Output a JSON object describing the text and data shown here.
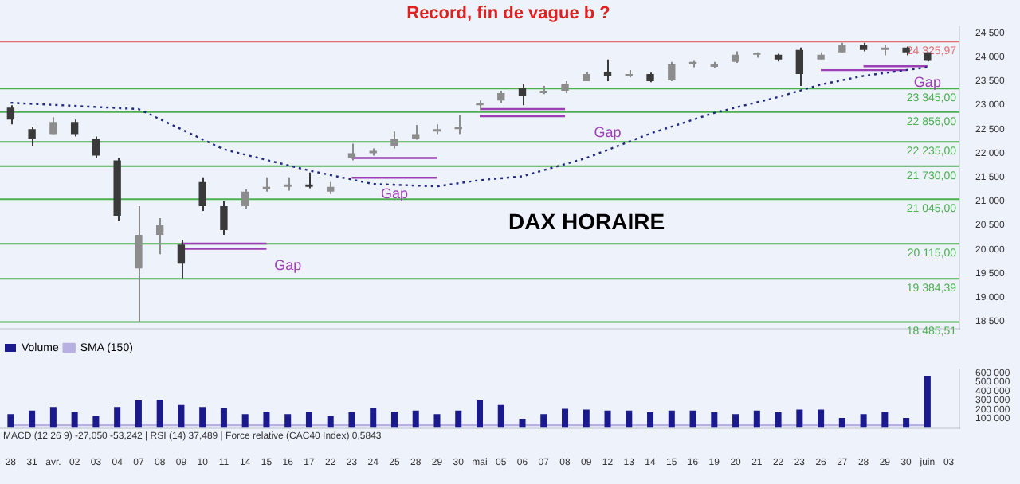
{
  "chart_data": [
    {
      "type": "candlestick",
      "title": "Record, fin de vague b ?",
      "colors": [
        "#3a3a3a",
        "#3a3a3a",
        "#8c8c8c",
        "#3a3a3a",
        "#3a3a3a",
        "#3a3a3a",
        "#8c8c8c",
        "#8c8c8c",
        "#3a3a3a",
        "#3a3a3a",
        "#3a3a3a",
        "#8c8c8c",
        "#8c8c8c",
        "#8c8c8c",
        "#3a3a3a",
        "#8c8c8c",
        "#8c8c8c",
        "#8c8c8c",
        "#8c8c8c",
        "#8c8c8c",
        "#8c8c8c",
        "#8c8c8c",
        "#8c8c8c",
        "#8c8c8c",
        "#3a3a3a",
        "#8c8c8c",
        "#8c8c8c",
        "#8c8c8c",
        "#3a3a3a",
        "#8c8c8c",
        "#3a3a3a",
        "#8c8c8c",
        "#8c8c8c",
        "#8c8c8c",
        "#8c8c8c",
        "#8c8c8c",
        "#3a3a3a",
        "#3a3a3a",
        "#8c8c8c",
        "#8c8c8c",
        "#3a3a3a",
        "#8c8c8c",
        "#3a3a3a",
        "#3a3a3a",
        null
      ],
      "tick_labels": "y",
      "marker": "none",
      "categories": [
        "28",
        "31",
        "avr.",
        "02",
        "03",
        "04",
        "07",
        "08",
        "09",
        "10",
        "11",
        "14",
        "15",
        "16",
        "17",
        "22",
        "23",
        "24",
        "25",
        "28",
        "29",
        "30",
        "mai",
        "05",
        "06",
        "07",
        "08",
        "09",
        "12",
        "13",
        "14",
        "15",
        "16",
        "19",
        "20",
        "21",
        "22",
        "23",
        "26",
        "27",
        "28",
        "29",
        "30",
        "juin",
        "03"
      ],
      "ohlc": [
        [
          22950,
          23000,
          22600,
          22700
        ],
        [
          22500,
          22550,
          22150,
          22300
        ],
        [
          22400,
          22750,
          22400,
          22650
        ],
        [
          22650,
          22700,
          22350,
          22400
        ],
        [
          22300,
          22350,
          21900,
          21950
        ],
        [
          21850,
          21900,
          20600,
          20700
        ],
        [
          19600,
          20900,
          18490,
          20300
        ],
        [
          20300,
          20650,
          19900,
          20500
        ],
        [
          20100,
          20200,
          19400,
          19700
        ],
        [
          21400,
          21500,
          20800,
          20900
        ],
        [
          20900,
          21000,
          20300,
          20400
        ],
        [
          20900,
          21250,
          20850,
          21200
        ],
        [
          21250,
          21500,
          21200,
          21300
        ],
        [
          21300,
          21500,
          21220,
          21350
        ],
        [
          21350,
          21600,
          21270,
          21300
        ],
        [
          21200,
          21400,
          21150,
          21300
        ],
        [
          21900,
          22200,
          21850,
          22000
        ],
        [
          22000,
          22100,
          21950,
          22050
        ],
        [
          22150,
          22450,
          22100,
          22300
        ],
        [
          22300,
          22590,
          22280,
          22400
        ],
        [
          22450,
          22600,
          22400,
          22500
        ],
        [
          22500,
          22800,
          22400,
          22550
        ],
        [
          23000,
          23100,
          22900,
          23050
        ],
        [
          23100,
          23300,
          23050,
          23250
        ],
        [
          23350,
          23450,
          23000,
          23200
        ],
        [
          23250,
          23400,
          23230,
          23300
        ],
        [
          23300,
          23500,
          23250,
          23450
        ],
        [
          23500,
          23700,
          23500,
          23650
        ],
        [
          23700,
          23950,
          23500,
          23600
        ],
        [
          23600,
          23730,
          23580,
          23650
        ],
        [
          23650,
          23680,
          23480,
          23500
        ],
        [
          23520,
          23900,
          23500,
          23850
        ],
        [
          23850,
          23940,
          23790,
          23900
        ],
        [
          23800,
          23900,
          23780,
          23850
        ],
        [
          23900,
          24120,
          23880,
          24050
        ],
        [
          24050,
          24100,
          23990,
          24080
        ],
        [
          24050,
          24070,
          23910,
          23950
        ],
        [
          24150,
          24200,
          23400,
          23650
        ],
        [
          23950,
          24100,
          23950,
          24050
        ],
        [
          24100,
          24300,
          24100,
          24250
        ],
        [
          24250,
          24300,
          24120,
          24150
        ],
        [
          24150,
          24250,
          24040,
          24200
        ],
        [
          24200,
          24220,
          24040,
          24100
        ],
        [
          24100,
          24100,
          23910,
          23940
        ],
        null
      ],
      "series": [
        {
          "type": "line",
          "color": "#1f2a80",
          "line_style": "dotted",
          "values": [
            23050,
            null,
            null,
            null,
            null,
            null,
            22920,
            null,
            null,
            null,
            22080,
            null,
            null,
            null,
            21640,
            null,
            null,
            21360,
            null,
            null,
            21310,
            null,
            21440,
            null,
            21520,
            null,
            null,
            21900,
            null,
            null,
            22410,
            null,
            null,
            22840,
            null,
            null,
            23170,
            null,
            23430,
            null,
            23610,
            null,
            null,
            23790,
            null
          ]
        },
        {
          "type": "line",
          "color": "#9b3fb5",
          "values": [
            null,
            null,
            null,
            null,
            null,
            null,
            null,
            null,
            20120,
            20120,
            20120,
            20120,
            20120,
            null,
            null,
            null,
            null,
            null,
            null,
            null,
            null,
            null,
            null,
            null,
            null,
            null,
            null,
            null,
            null,
            null,
            null,
            null,
            null,
            null,
            null,
            null,
            null,
            null,
            null,
            null,
            null,
            null,
            null,
            null,
            null
          ]
        },
        {
          "type": "line",
          "color": "#9b3fb5",
          "values": [
            null,
            null,
            null,
            null,
            null,
            null,
            null,
            null,
            20010,
            20010,
            20010,
            20010,
            20010,
            null,
            null,
            null,
            null,
            null,
            null,
            null,
            null,
            null,
            null,
            null,
            null,
            null,
            null,
            null,
            null,
            null,
            null,
            null,
            null,
            null,
            null,
            null,
            null,
            null,
            null,
            null,
            null,
            null,
            null,
            null,
            null
          ]
        },
        {
          "type": "line",
          "color": "#9b3fb5",
          "values": [
            null,
            null,
            null,
            null,
            null,
            null,
            null,
            null,
            null,
            null,
            null,
            null,
            null,
            null,
            null,
            null,
            21900,
            21900,
            21900,
            21900,
            21900,
            null,
            null,
            null,
            null,
            null,
            null,
            null,
            null,
            null,
            null,
            null,
            null,
            null,
            null,
            null,
            null,
            null,
            null,
            null,
            null,
            null,
            null,
            null,
            null
          ]
        },
        {
          "type": "line",
          "color": "#9b3fb5",
          "values": [
            null,
            null,
            null,
            null,
            null,
            null,
            null,
            null,
            null,
            null,
            null,
            null,
            null,
            null,
            null,
            null,
            21490,
            21490,
            21490,
            21490,
            21490,
            null,
            null,
            null,
            null,
            null,
            null,
            null,
            null,
            null,
            null,
            null,
            null,
            null,
            null,
            null,
            null,
            null,
            null,
            null,
            null,
            null,
            null,
            null,
            null
          ]
        },
        {
          "type": "line",
          "color": "#9b3fb5",
          "values": [
            null,
            null,
            null,
            null,
            null,
            null,
            null,
            null,
            null,
            null,
            null,
            null,
            null,
            null,
            null,
            null,
            null,
            null,
            null,
            null,
            null,
            null,
            22920,
            22920,
            22920,
            22920,
            22920,
            null,
            null,
            null,
            null,
            null,
            null,
            null,
            null,
            null,
            null,
            null,
            null,
            null,
            null,
            null,
            null,
            null,
            null
          ]
        },
        {
          "type": "line",
          "color": "#9b3fb5",
          "values": [
            null,
            null,
            null,
            null,
            null,
            null,
            null,
            null,
            null,
            null,
            null,
            null,
            null,
            null,
            null,
            null,
            null,
            null,
            null,
            null,
            null,
            null,
            22770,
            22770,
            22770,
            22770,
            22770,
            null,
            null,
            null,
            null,
            null,
            null,
            null,
            null,
            null,
            null,
            null,
            null,
            null,
            null,
            null,
            null,
            null,
            null
          ]
        },
        {
          "type": "line",
          "color": "#9b3fb5",
          "values": [
            null,
            null,
            null,
            null,
            null,
            null,
            null,
            null,
            null,
            null,
            null,
            null,
            null,
            null,
            null,
            null,
            null,
            null,
            null,
            null,
            null,
            null,
            null,
            null,
            null,
            null,
            null,
            null,
            null,
            null,
            null,
            null,
            null,
            null,
            null,
            null,
            null,
            null,
            null,
            null,
            23810,
            23810,
            23810,
            23810,
            null
          ]
        },
        {
          "type": "line",
          "color": "#9b3fb5",
          "values": [
            null,
            null,
            null,
            null,
            null,
            null,
            null,
            null,
            null,
            null,
            null,
            null,
            null,
            null,
            null,
            null,
            null,
            null,
            null,
            null,
            null,
            null,
            null,
            null,
            null,
            null,
            null,
            null,
            null,
            null,
            null,
            null,
            null,
            null,
            null,
            null,
            null,
            null,
            23730,
            23730,
            23730,
            23730,
            23730,
            null,
            null
          ]
        }
      ],
      "ylim": [
        18350,
        24620
      ],
      "yticks": [
        {
          "value": 18500,
          "label": "18 500"
        },
        {
          "value": 19000,
          "label": "19 000"
        },
        {
          "value": 19500,
          "label": "19 500"
        },
        {
          "value": 20000,
          "label": "20 000"
        },
        {
          "value": 20500,
          "label": "20 500"
        },
        {
          "value": 21000,
          "label": "21 000"
        },
        {
          "value": 21500,
          "label": "21 500"
        },
        {
          "value": 22000,
          "label": "22 000"
        },
        {
          "value": 22500,
          "label": "22 500"
        },
        {
          "value": 23000,
          "label": "23 000"
        },
        {
          "value": 23500,
          "label": "23 500"
        },
        {
          "value": 24000,
          "label": "24 000"
        },
        {
          "value": 24500,
          "label": "24 500"
        }
      ],
      "ref_lines": [
        {
          "axis": "y",
          "value": 24325.97,
          "label": "24 325,97",
          "color": "#e07070"
        },
        {
          "axis": "y",
          "value": 23345,
          "label": "23 345,00",
          "color": "#4caf50"
        },
        {
          "axis": "y",
          "value": 22856,
          "label": "22 856,00",
          "color": "#4caf50"
        },
        {
          "axis": "y",
          "value": 22235,
          "label": "22 235,00",
          "color": "#4caf50"
        },
        {
          "axis": "y",
          "value": 21730,
          "label": "21 730,00",
          "color": "#4caf50"
        },
        {
          "axis": "y",
          "value": 21045,
          "label": "21 045,00",
          "color": "#4caf50"
        },
        {
          "axis": "y",
          "value": 20115,
          "label": "20 115,00",
          "color": "#4caf50"
        },
        {
          "axis": "y",
          "value": 19384.39,
          "label": "19 384,39",
          "color": "#4caf50"
        },
        {
          "axis": "y",
          "value": 18485.51,
          "label": "18 485,51",
          "color": "#4caf50"
        }
      ],
      "annotations": [
        "DAX HORAIRE",
        {
          "text": "Gap",
          "x": "16",
          "y": 20010
        },
        {
          "text": "Gap",
          "x": "25",
          "y": 21490
        },
        {
          "text": "Gap",
          "x": "12",
          "y": 22770
        },
        {
          "text": "Gap",
          "x": "juin",
          "y": 23810
        }
      ]
    },
    {
      "type": "bar",
      "marker": "none",
      "legend": "top left",
      "categories": [
        "28",
        "31",
        "avr.",
        "02",
        "03",
        "04",
        "07",
        "08",
        "09",
        "10",
        "11",
        "14",
        "15",
        "16",
        "17",
        "22",
        "23",
        "24",
        "25",
        "28",
        "29",
        "30",
        "mai",
        "05",
        "06",
        "07",
        "08",
        "09",
        "12",
        "13",
        "14",
        "15",
        "16",
        "19",
        "20",
        "21",
        "22",
        "23",
        "26",
        "27",
        "28",
        "29",
        "30",
        "juin",
        "03"
      ],
      "series": [
        {
          "name": "Volume",
          "color": "#1a1a8c",
          "values": [
            150000,
            190000,
            230000,
            170000,
            130000,
            230000,
            300000,
            310000,
            250000,
            230000,
            220000,
            150000,
            180000,
            150000,
            170000,
            130000,
            170000,
            220000,
            180000,
            190000,
            150000,
            190000,
            300000,
            250000,
            100000,
            150000,
            210000,
            200000,
            190000,
            190000,
            170000,
            190000,
            190000,
            170000,
            150000,
            190000,
            170000,
            200000,
            200000,
            110000,
            150000,
            170000,
            110000,
            570000,
            null
          ]
        },
        {
          "name": "SMA (150)",
          "type": "line",
          "color": "#b8b0e0",
          "values": [
            30000,
            null,
            null,
            null,
            null,
            null,
            null,
            null,
            null,
            null,
            null,
            null,
            null,
            null,
            null,
            null,
            null,
            null,
            null,
            null,
            null,
            null,
            30000,
            null,
            null,
            null,
            null,
            null,
            null,
            null,
            null,
            null,
            null,
            null,
            null,
            null,
            null,
            null,
            null,
            null,
            null,
            null,
            null,
            30000,
            null
          ]
        }
      ],
      "ylim": [
        0,
        640000
      ],
      "yticks": [
        {
          "value": 100000,
          "label": "100 000"
        },
        {
          "value": 200000,
          "label": "200 000"
        },
        {
          "value": 300000,
          "label": "300 000"
        },
        {
          "value": 400000,
          "label": "400 000"
        },
        {
          "value": 500000,
          "label": "500 000"
        },
        {
          "value": 600000,
          "label": "600 000"
        }
      ],
      "annotations": [
        "MACD (12 26 9) -27,050 -53,242 | RSI (14) 37,489 | Force relative (CAC40 Index) 0,5843"
      ]
    }
  ]
}
